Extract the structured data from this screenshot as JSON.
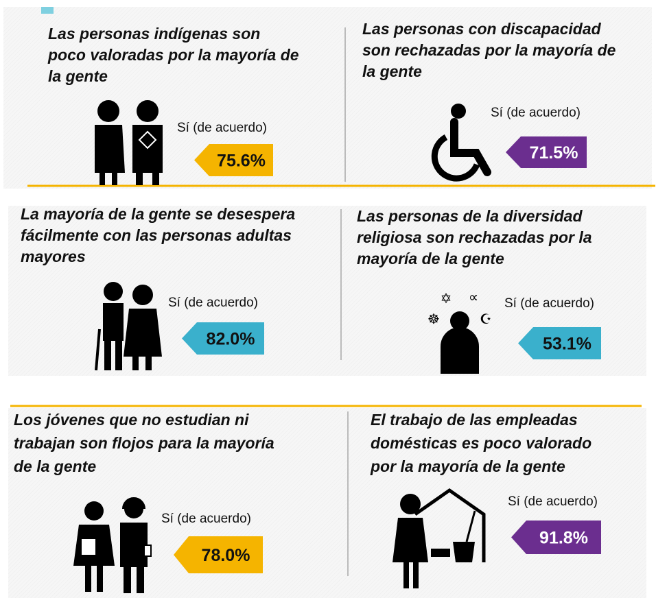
{
  "panels": [
    {
      "title_lines": [
        "Las personas indígenas son",
        "poco valoradas por la mayoría de",
        "la gente"
      ],
      "answer": "Sí (de acuerdo)",
      "value": "75.6%",
      "color": "#f5b400",
      "text_color": "#111111"
    },
    {
      "title_lines": [
        "Las personas con discapacidad",
        "son rechazadas por la mayoría de",
        "la gente"
      ],
      "answer": "Sí (de acuerdo)",
      "value": "71.5%",
      "color": "#6b2e8f",
      "text_color": "#ffffff"
    },
    {
      "title_lines": [
        "La mayoría de la gente se desespera",
        "fácilmente con las personas adultas",
        "mayores"
      ],
      "answer": "Sí (de acuerdo)",
      "value": "82.0%",
      "color": "#3ab0cc",
      "text_color": "#111111"
    },
    {
      "title_lines": [
        "Las personas de la diversidad",
        "religiosa son rechazadas por la",
        "mayoría de la gente"
      ],
      "answer": "Sí (de acuerdo)",
      "value": "53.1%",
      "color": "#3ab0cc",
      "text_color": "#111111"
    },
    {
      "title_lines": [
        "Los jóvenes que no estudian ni",
        "trabajan son flojos para la mayoría",
        "de la gente"
      ],
      "answer": "Sí (de acuerdo)",
      "value": "78.0%",
      "color": "#f5b400",
      "text_color": "#111111"
    },
    {
      "title_lines": [
        "El trabajo de las empleadas",
        "domésticas es poco valorado",
        "por la mayoría de la gente"
      ],
      "answer": "Sí (de acuerdo)",
      "value": "91.8%",
      "color": "#6b2e8f",
      "text_color": "#ffffff"
    }
  ]
}
